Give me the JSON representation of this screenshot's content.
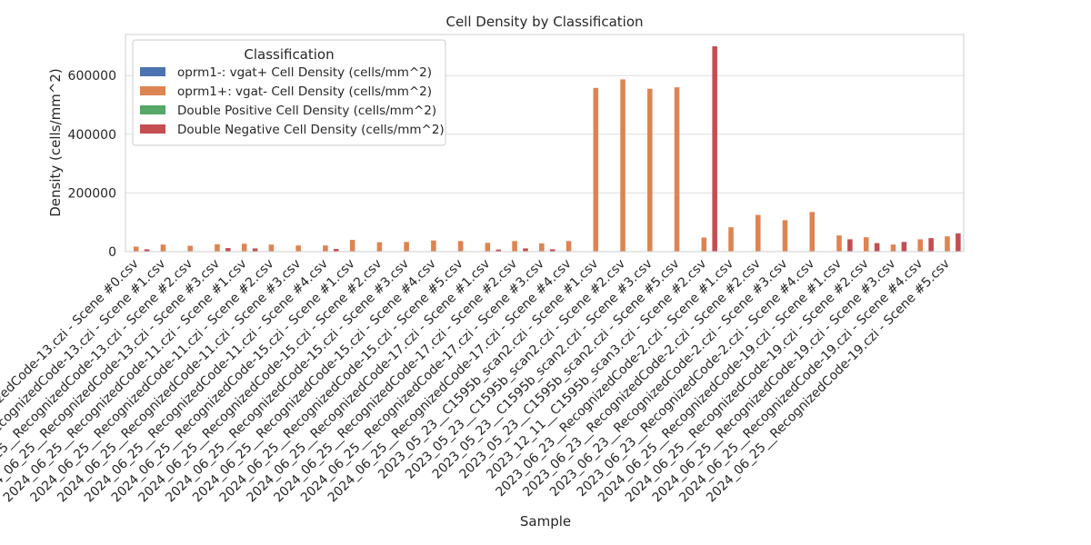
{
  "chart_data": {
    "type": "bar",
    "title": "Cell Density by Classification",
    "xlabel": "Sample",
    "ylabel": "Density (cells/mm^2)",
    "ylim": [
      0,
      740000
    ],
    "yticks": [
      0,
      200000,
      400000,
      600000
    ],
    "ytick_labels": [
      "0",
      "200000",
      "400000",
      "600000"
    ],
    "grid": "horizontal",
    "legend": {
      "title": "Classification",
      "placement": "top-left"
    },
    "categories": [
      "2024_06_25__RecognizedCode-13.czi - Scene #0.csv",
      "2024_06_25__RecognizedCode-13.czi - Scene #1.csv",
      "2024_06_25__RecognizedCode-13.czi - Scene #2.csv",
      "2024_06_25__RecognizedCode-13.czi - Scene #3.csv",
      "2024_06_25__RecognizedCode-11.czi - Scene #1.csv",
      "2024_06_25__RecognizedCode-11.czi - Scene #2.csv",
      "2024_06_25__RecognizedCode-11.czi - Scene #3.csv",
      "2024_06_25__RecognizedCode-11.czi - Scene #4.csv",
      "2024_06_25__RecognizedCode-15.czi - Scene #1.csv",
      "2024_06_25__RecognizedCode-15.czi - Scene #2.csv",
      "2024_06_25__RecognizedCode-15.czi - Scene #3.csv",
      "2024_06_25__RecognizedCode-15.czi - Scene #4.csv",
      "2024_06_25__RecognizedCode-15.czi - Scene #5.csv",
      "2024_06_25__RecognizedCode-17.czi - Scene #1.csv",
      "2024_06_25__RecognizedCode-17.czi - Scene #2.csv",
      "2024_06_25__RecognizedCode-17.czi - Scene #3.csv",
      "2024_06_25__RecognizedCode-17.czi - Scene #4.csv",
      "2023_05_23__C1595b_scan2.czi - Scene #1.csv",
      "2023_05_23__C1595b_scan2.czi - Scene #2.csv",
      "2023_05_23__C1595b_scan2.czi - Scene #3.csv",
      "2023_05_23__C1595b_scan2.czi - Scene #5.csv",
      "2023_12_11__C1595b_scan3.czi - Scene #2.csv",
      "2023_06_23__RecognizedCode-2.czi - Scene #1.csv",
      "2023_06_23__RecognizedCode-2.czi - Scene #2.csv",
      "2023_06_23__RecognizedCode-2.czi - Scene #3.csv",
      "2023_06_23__RecognizedCode-2.czi - Scene #4.csv",
      "2024_06_25__RecognizedCode-19.czi - Scene #1.csv",
      "2024_06_25__RecognizedCode-19.czi - Scene #2.csv",
      "2024_06_25__RecognizedCode-19.czi - Scene #3.csv",
      "2024_06_25__RecognizedCode-19.czi - Scene #4.csv",
      "2024_06_25__RecognizedCode-19.czi - Scene #5.csv"
    ],
    "series": [
      {
        "name": "oprm1-: vgat+ Cell Density (cells/mm^2)",
        "color": "#4c72b0",
        "values": [
          0,
          0,
          0,
          0,
          0,
          0,
          0,
          0,
          0,
          0,
          0,
          0,
          0,
          0,
          0,
          0,
          0,
          0,
          0,
          0,
          0,
          0,
          0,
          0,
          0,
          0,
          0,
          0,
          0,
          0,
          0
        ]
      },
      {
        "name": "oprm1+: vgat- Cell Density (cells/mm^2)",
        "color": "#dd8452",
        "values": [
          17000,
          24000,
          20000,
          25000,
          27000,
          24000,
          21000,
          21000,
          40000,
          32000,
          33000,
          38000,
          36000,
          30000,
          36000,
          28000,
          36000,
          558000,
          587000,
          555000,
          560000,
          48000,
          83000,
          125000,
          107000,
          135000,
          55000,
          49000,
          24000,
          42000,
          52000
        ]
      },
      {
        "name": "Double Positive Cell Density (cells/mm^2)",
        "color": "#55a868",
        "values": [
          0,
          0,
          0,
          0,
          0,
          0,
          0,
          0,
          0,
          0,
          0,
          0,
          0,
          0,
          0,
          0,
          0,
          0,
          0,
          0,
          0,
          0,
          0,
          0,
          0,
          0,
          0,
          0,
          0,
          0,
          0
        ]
      },
      {
        "name": "Double Negative Cell Density (cells/mm^2)",
        "color": "#c44e52",
        "values": [
          8000,
          0,
          0,
          12000,
          11000,
          0,
          0,
          9000,
          0,
          0,
          0,
          0,
          0,
          7000,
          11000,
          8000,
          0,
          0,
          0,
          0,
          0,
          700000,
          0,
          0,
          0,
          0,
          42000,
          29000,
          33000,
          46000,
          62000
        ]
      }
    ]
  }
}
